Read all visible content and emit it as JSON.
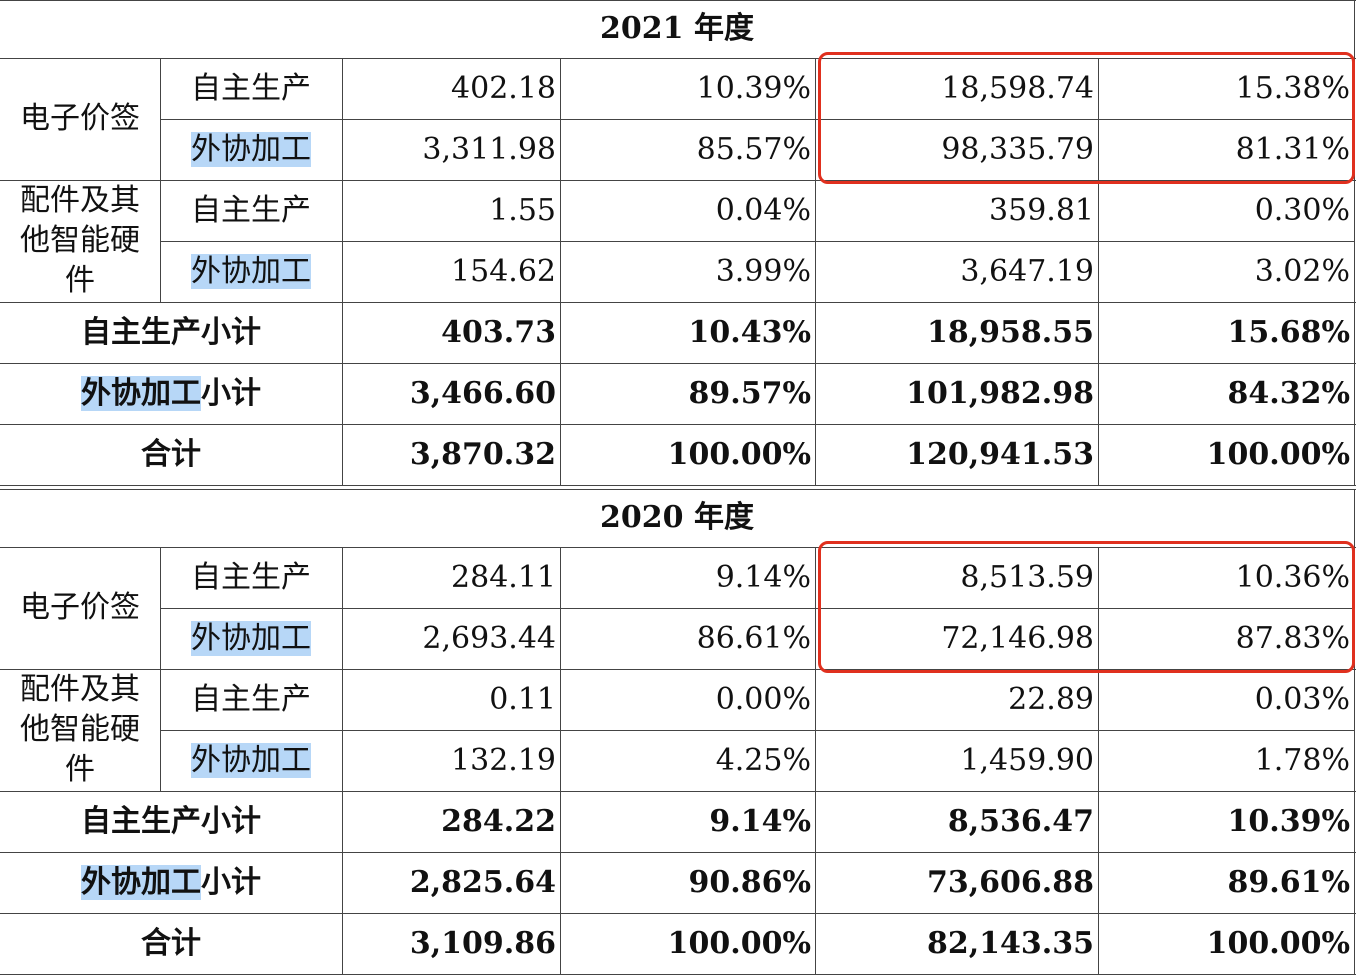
{
  "years": [
    {
      "title": "2021 年度",
      "groups": [
        {
          "name_lines": [
            "电子价签"
          ],
          "rows": [
            {
              "type": "自主生产",
              "v1": "402.18",
              "p1": "10.39%",
              "v2": "18,598.74",
              "p2": "15.38%"
            },
            {
              "type": "外协加工",
              "v1": "3,311.98",
              "p1": "85.57%",
              "v2": "98,335.79",
              "p2": "81.31%"
            }
          ]
        },
        {
          "name_lines": [
            "配件及其",
            "他智能硬",
            "件"
          ],
          "rows": [
            {
              "type": "自主生产",
              "v1": "1.55",
              "p1": "0.04%",
              "v2": "359.81",
              "p2": "0.30%"
            },
            {
              "type": "外协加工",
              "v1": "154.62",
              "p1": "3.99%",
              "v2": "3,647.19",
              "p2": "3.02%"
            }
          ]
        }
      ],
      "summary": [
        {
          "label_a": "",
          "label_b": "自主生产小计",
          "v1": "403.73",
          "p1": "10.43%",
          "v2": "18,958.55",
          "p2": "15.68%"
        },
        {
          "label_a": "外协加工",
          "label_b": "小计",
          "v1": "3,466.60",
          "p1": "89.57%",
          "v2": "101,982.98",
          "p2": "84.32%"
        },
        {
          "label_a": "",
          "label_b": "合计",
          "v1": "3,870.32",
          "p1": "100.00%",
          "v2": "120,941.53",
          "p2": "100.00%"
        }
      ]
    },
    {
      "title": "2020 年度",
      "groups": [
        {
          "name_lines": [
            "电子价签"
          ],
          "rows": [
            {
              "type": "自主生产",
              "v1": "284.11",
              "p1": "9.14%",
              "v2": "8,513.59",
              "p2": "10.36%"
            },
            {
              "type": "外协加工",
              "v1": "2,693.44",
              "p1": "86.61%",
              "v2": "72,146.98",
              "p2": "87.83%"
            }
          ]
        },
        {
          "name_lines": [
            "配件及其",
            "他智能硬",
            "件"
          ],
          "rows": [
            {
              "type": "自主生产",
              "v1": "0.11",
              "p1": "0.00%",
              "v2": "22.89",
              "p2": "0.03%"
            },
            {
              "type": "外协加工",
              "v1": "132.19",
              "p1": "4.25%",
              "v2": "1,459.90",
              "p2": "1.78%"
            }
          ]
        }
      ],
      "summary": [
        {
          "label_a": "",
          "label_b": "自主生产小计",
          "v1": "284.22",
          "p1": "9.14%",
          "v2": "8,536.47",
          "p2": "10.39%"
        },
        {
          "label_a": "外协加工",
          "label_b": "小计",
          "v1": "2,825.64",
          "p1": "90.86%",
          "v2": "73,606.88",
          "p2": "89.61%"
        },
        {
          "label_a": "",
          "label_b": "合计",
          "v1": "3,109.86",
          "p1": "100.00%",
          "v2": "82,143.35",
          "p2": "100.00%"
        }
      ]
    }
  ],
  "colors": {
    "highlight": "#b7d7f7",
    "box": "#e0301e",
    "border": "#444444"
  }
}
